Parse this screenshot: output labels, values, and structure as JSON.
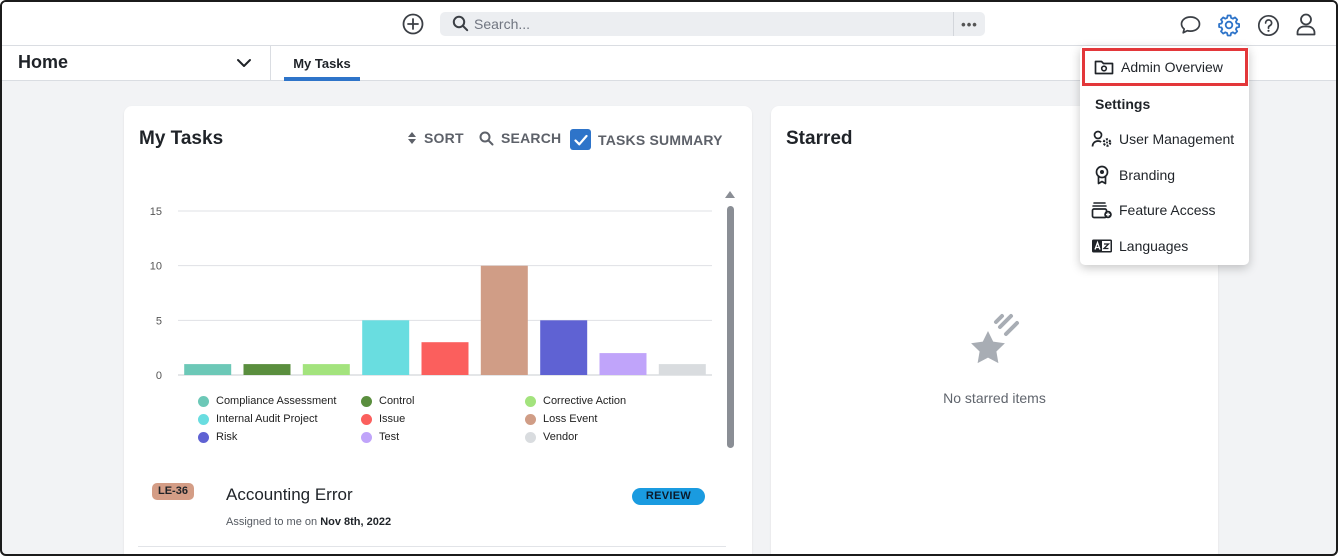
{
  "topbar": {
    "search_placeholder": "Search...",
    "more_label": "•••"
  },
  "subnav": {
    "home_label": "Home",
    "tabs": [
      {
        "label": "My Tasks"
      }
    ]
  },
  "tasks_card": {
    "title": "My Tasks",
    "sort_label": "SORT",
    "search_label": "SEARCH",
    "summary_label": "TASKS SUMMARY",
    "task": {
      "id_badge": "LE-36",
      "title": "Accounting Error",
      "assigned_prefix": "Assigned to me on",
      "assigned_date": "Nov 8th, 2022",
      "status": "REVIEW"
    }
  },
  "starred_card": {
    "title": "Starred",
    "empty_text": "No starred items"
  },
  "settings_menu": {
    "admin_overview": "Admin Overview",
    "heading": "Settings",
    "items": [
      {
        "label": "User Management",
        "icon": "user-gear-icon"
      },
      {
        "label": "Branding",
        "icon": "award-ribbon-icon"
      },
      {
        "label": "Feature Access",
        "icon": "feature-stack-icon"
      },
      {
        "label": "Languages",
        "icon": "language-icon"
      }
    ]
  },
  "chart_data": {
    "type": "bar",
    "categories": [
      "Compliance Assessment",
      "Control",
      "Corrective Action",
      "Internal Audit Project",
      "Issue",
      "Loss Event",
      "Risk",
      "Test",
      "Vendor"
    ],
    "values": [
      1,
      1,
      1,
      5,
      3,
      10,
      5,
      2,
      1
    ],
    "colors": [
      "#6cc8b7",
      "#5a8e3e",
      "#a3e37d",
      "#69dde0",
      "#fb5f5d",
      "#d09d86",
      "#5f62d3",
      "#c0a4fa",
      "#d9dcdf"
    ],
    "ylim": [
      0,
      15
    ],
    "yticks": [
      0,
      5,
      10,
      15
    ],
    "grid": true,
    "legend_position": "bottom"
  },
  "colors": {
    "accent": "#2e74c9",
    "highlight": "#e3373a",
    "review_badge": "#1a9be0",
    "le_badge": "#d49d86"
  }
}
